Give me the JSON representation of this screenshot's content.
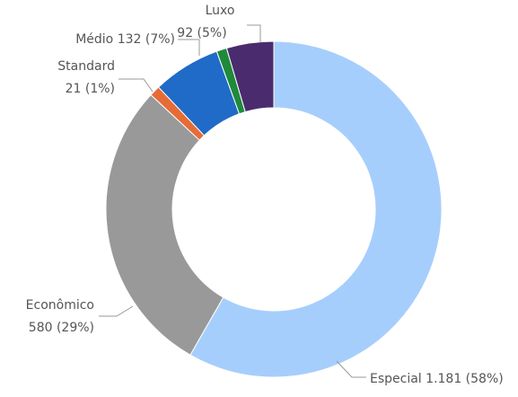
{
  "chart_data": {
    "type": "donut",
    "categories": [
      "Especial",
      "Econômico",
      "Standard",
      "Médio",
      null,
      "Luxo"
    ],
    "values": [
      1181,
      580,
      21,
      132,
      20,
      92
    ],
    "value_labels": [
      "1.181 (58%)",
      "580 (29%)",
      "21 (1%)",
      "132 (7%)",
      null,
      "92 (5%)"
    ],
    "colors": [
      "#a6cefc",
      "#999999",
      "#e66c37",
      "#1f6bc7",
      "#1e8a3a",
      "#4a2c6e"
    ]
  }
}
